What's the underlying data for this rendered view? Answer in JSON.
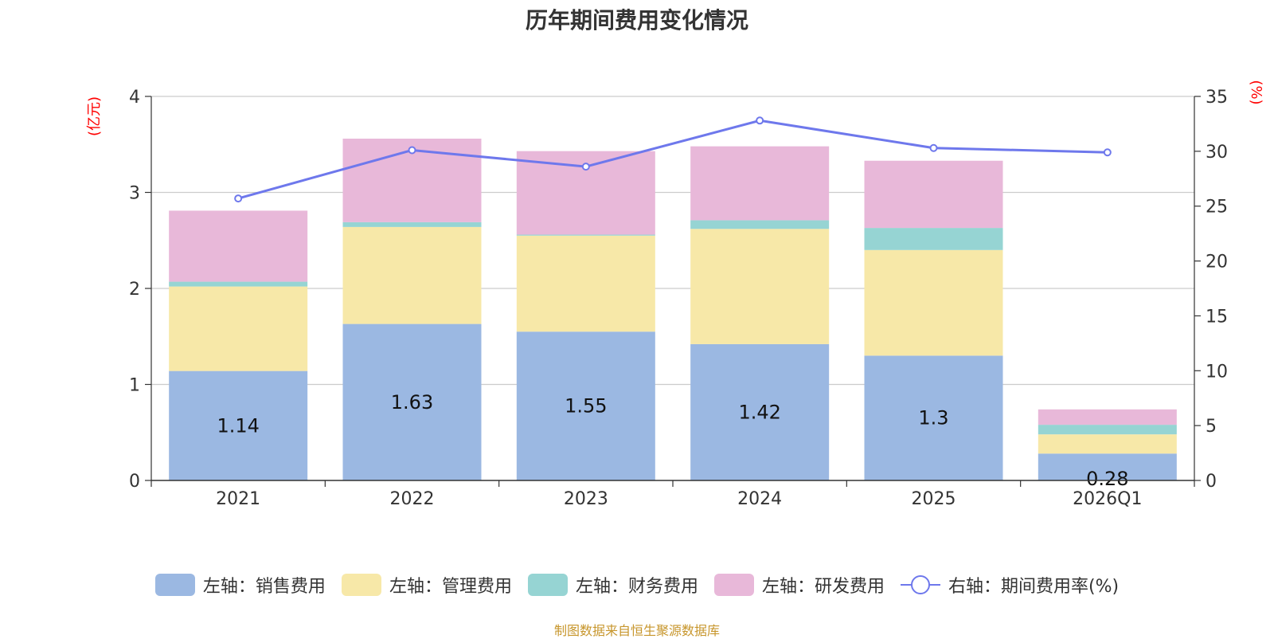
{
  "title": "历年期间费用变化情况",
  "footer": "制图数据来自恒生聚源数据库",
  "chart_data": {
    "type": "bar",
    "stacked": true,
    "categories": [
      "2021",
      "2022",
      "2023",
      "2024",
      "2025",
      "2026Q1"
    ],
    "series": [
      {
        "name": "左轴：销售费用",
        "axis": "left",
        "color": "#9bb8e2",
        "values": [
          1.14,
          1.63,
          1.55,
          1.42,
          1.3,
          0.28
        ],
        "labels": [
          "1.14",
          "1.63",
          "1.55",
          "1.42",
          "1.3",
          "0.28"
        ]
      },
      {
        "name": "左轴：管理费用",
        "axis": "left",
        "color": "#f7e8a8",
        "values": [
          0.88,
          1.01,
          1.0,
          1.2,
          1.1,
          0.2
        ]
      },
      {
        "name": "左轴：财务费用",
        "axis": "left",
        "color": "#96d4d3",
        "values": [
          0.05,
          0.05,
          0.01,
          0.09,
          0.23,
          0.1
        ]
      },
      {
        "name": "左轴：研发费用",
        "axis": "left",
        "color": "#e8b8d9",
        "values": [
          0.74,
          0.87,
          0.87,
          0.77,
          0.7,
          0.16
        ]
      }
    ],
    "line": {
      "name": "右轴：期间费用率(%)",
      "axis": "right",
      "color": "#6e78ec",
      "values": [
        25.7,
        30.1,
        28.6,
        32.8,
        30.3,
        29.9
      ]
    },
    "left_axis": {
      "label": "(亿元)",
      "min": 0,
      "max": 4,
      "ticks": [
        "0",
        "1",
        "2",
        "3",
        "4"
      ]
    },
    "right_axis": {
      "label": "(%)",
      "min": 0,
      "max": 35,
      "ticks": [
        "0",
        "5",
        "10",
        "15",
        "20",
        "25",
        "30",
        "35"
      ]
    },
    "grid": true,
    "legend_position": "bottom"
  }
}
